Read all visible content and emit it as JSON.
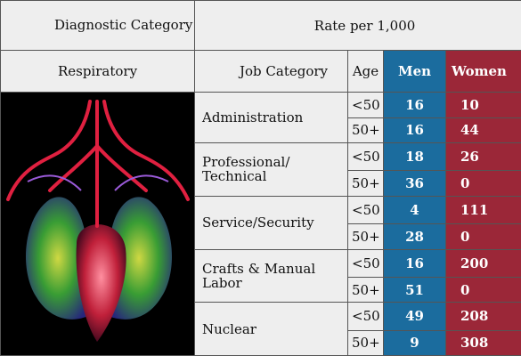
{
  "header": {
    "diagnostic_category": "Diagnostic Category",
    "rate": "Rate per 1,000"
  },
  "subheader": {
    "category": "Respiratory",
    "job": "Job Category",
    "age": "Age",
    "men": "Men",
    "women": "Women"
  },
  "groups": [
    {
      "job": "Administration",
      "rows": [
        {
          "age": "<50",
          "men": "16",
          "women": "10"
        },
        {
          "age": "50+",
          "men": "16",
          "women": "44"
        }
      ]
    },
    {
      "job": "Professional/ Technical",
      "rows": [
        {
          "age": "<50",
          "men": "18",
          "women": "26"
        },
        {
          "age": "50+",
          "men": "36",
          "women": "0"
        }
      ]
    },
    {
      "job": "Service/Security",
      "rows": [
        {
          "age": "<50",
          "men": "4",
          "women": "111"
        },
        {
          "age": "50+",
          "men": "28",
          "women": "0"
        }
      ]
    },
    {
      "job": "Crafts & Manual Labor",
      "rows": [
        {
          "age": "<50",
          "men": "16",
          "women": "200"
        },
        {
          "age": "50+",
          "men": "51",
          "women": "0"
        }
      ]
    },
    {
      "job": "Nuclear",
      "rows": [
        {
          "age": "<50",
          "men": "49",
          "women": "208"
        },
        {
          "age": "50+",
          "men": "9",
          "women": "308"
        }
      ]
    }
  ]
}
